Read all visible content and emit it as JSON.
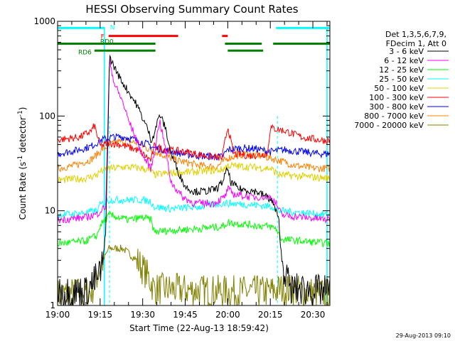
{
  "chart_data": {
    "type": "line",
    "title": "HESSI Observing Summary Count Rates",
    "xlabel": "Start Time (22-Aug-13 18:59:42)",
    "ylabel": "Count Rate (s",
    "ylabel_sup1": "-1",
    "ylabel_mid": " detector",
    "ylabel_sup2": "-1",
    "ylabel_end": ")",
    "y_scale": "log",
    "xlim_minutes": [
      0,
      96
    ],
    "ylim": [
      1,
      1000
    ],
    "x_ticks": [
      {
        "label": "19:00",
        "min": 0
      },
      {
        "label": "19:15",
        "min": 15
      },
      {
        "label": "19:30",
        "min": 30
      },
      {
        "label": "19:45",
        "min": 45
      },
      {
        "label": "20:00",
        "min": 60
      },
      {
        "label": "20:15",
        "min": 75
      },
      {
        "label": "20:30",
        "min": 90
      }
    ],
    "y_ticks": [
      {
        "label": "1",
        "value": 1
      },
      {
        "label": "10",
        "value": 10
      },
      {
        "label": "100",
        "value": 100
      },
      {
        "label": "1000",
        "value": 1000
      }
    ],
    "legend_header": [
      "Det 1,3,5,6,7,9,",
      "FDecim 1, Att 0"
    ],
    "series": [
      {
        "name": "3 - 6 keV",
        "color": "#000000",
        "points": [
          [
            0,
            1.4
          ],
          [
            10,
            1.4
          ],
          [
            15,
            2.2
          ],
          [
            16,
            3
          ],
          [
            17,
            6
          ],
          [
            18.3,
            420
          ],
          [
            20,
            330
          ],
          [
            22,
            250
          ],
          [
            25,
            180
          ],
          [
            28,
            130
          ],
          [
            30,
            95
          ],
          [
            32,
            70
          ],
          [
            33,
            55
          ],
          [
            34,
            65
          ],
          [
            36,
            105
          ],
          [
            38,
            75
          ],
          [
            40,
            40
          ],
          [
            43,
            24
          ],
          [
            45,
            18
          ],
          [
            48,
            16
          ],
          [
            52,
            16
          ],
          [
            56,
            17
          ],
          [
            58,
            20
          ],
          [
            60,
            28
          ],
          [
            61,
            20
          ],
          [
            64,
            17
          ],
          [
            70,
            16
          ],
          [
            74,
            14
          ],
          [
            76,
            12
          ],
          [
            78,
            8
          ],
          [
            79,
            3
          ],
          [
            82,
            1.5
          ],
          [
            96,
            1.4
          ]
        ]
      },
      {
        "name": "6 - 12 keV",
        "color": "#ff00ff",
        "points": [
          [
            0,
            8
          ],
          [
            10,
            8.5
          ],
          [
            14,
            9.2
          ],
          [
            15,
            10
          ],
          [
            17,
            11
          ],
          [
            18.3,
            400
          ],
          [
            20,
            220
          ],
          [
            23,
            140
          ],
          [
            25,
            90
          ],
          [
            28,
            55
          ],
          [
            30,
            38
          ],
          [
            33,
            28
          ],
          [
            34,
            40
          ],
          [
            36,
            90
          ],
          [
            38,
            45
          ],
          [
            40,
            20
          ],
          [
            44,
            14
          ],
          [
            48,
            12
          ],
          [
            55,
            12
          ],
          [
            59,
            14
          ],
          [
            60,
            17
          ],
          [
            62,
            15
          ],
          [
            68,
            14
          ],
          [
            75,
            14
          ],
          [
            77,
            12
          ],
          [
            79,
            9
          ],
          [
            96,
            8
          ]
        ]
      },
      {
        "name": "12 - 25 keV",
        "color": "#00ff00",
        "points": [
          [
            0,
            4.5
          ],
          [
            10,
            4.8
          ],
          [
            14,
            5.5
          ],
          [
            15,
            7
          ],
          [
            18.3,
            9
          ],
          [
            25,
            8
          ],
          [
            30,
            8.5
          ],
          [
            33,
            8
          ],
          [
            34,
            6
          ],
          [
            40,
            6.2
          ],
          [
            50,
            6.5
          ],
          [
            58,
            6.8
          ],
          [
            60,
            7.5
          ],
          [
            70,
            7
          ],
          [
            75,
            6.8
          ],
          [
            77,
            6.5
          ],
          [
            79,
            5
          ],
          [
            96,
            4.5
          ]
        ]
      },
      {
        "name": "25 - 50 keV",
        "color": "#00ffff",
        "points": [
          [
            0,
            9
          ],
          [
            10,
            9.5
          ],
          [
            14,
            10
          ],
          [
            15,
            11.5
          ],
          [
            18.3,
            13
          ],
          [
            25,
            13
          ],
          [
            30,
            13
          ],
          [
            33,
            12.5
          ],
          [
            34,
            11
          ],
          [
            40,
            10.5
          ],
          [
            50,
            11
          ],
          [
            58,
            12
          ],
          [
            60,
            12
          ],
          [
            70,
            11.5
          ],
          [
            76,
            11
          ],
          [
            78,
            10
          ],
          [
            96,
            9
          ]
        ]
      },
      {
        "name": "50 - 100 keV",
        "color": "#e0d000",
        "points": [
          [
            0,
            21
          ],
          [
            10,
            22
          ],
          [
            14,
            24
          ],
          [
            15,
            26
          ],
          [
            18.3,
            28
          ],
          [
            24,
            29
          ],
          [
            30,
            28
          ],
          [
            33,
            26
          ],
          [
            34,
            24
          ],
          [
            40,
            25
          ],
          [
            50,
            26
          ],
          [
            58,
            27
          ],
          [
            60,
            30
          ],
          [
            68,
            29
          ],
          [
            75,
            28
          ],
          [
            78,
            24
          ],
          [
            96,
            22
          ]
        ]
      },
      {
        "name": "100 - 300 keV",
        "color": "#ff0000",
        "points": [
          [
            0,
            56
          ],
          [
            8,
            60
          ],
          [
            12,
            70
          ],
          [
            13,
            80
          ],
          [
            15,
            48
          ],
          [
            18.3,
            52
          ],
          [
            22,
            50
          ],
          [
            28,
            44
          ],
          [
            33,
            34
          ],
          [
            34,
            48
          ],
          [
            38,
            44
          ],
          [
            45,
            42
          ],
          [
            52,
            38
          ],
          [
            58,
            36
          ],
          [
            60,
            78
          ],
          [
            62,
            40
          ],
          [
            68,
            38
          ],
          [
            74,
            40
          ],
          [
            75,
            75
          ],
          [
            80,
            70
          ],
          [
            86,
            60
          ],
          [
            92,
            56
          ],
          [
            96,
            55
          ]
        ]
      },
      {
        "name": "300 - 800 keV",
        "color": "#0000ff",
        "points": [
          [
            0,
            40
          ],
          [
            6,
            43
          ],
          [
            12,
            48
          ],
          [
            15,
            55
          ],
          [
            19,
            60
          ],
          [
            24,
            60
          ],
          [
            28,
            55
          ],
          [
            32,
            50
          ],
          [
            34,
            46
          ],
          [
            38,
            44
          ],
          [
            44,
            40
          ],
          [
            50,
            38
          ],
          [
            58,
            37
          ],
          [
            60,
            44
          ],
          [
            65,
            46
          ],
          [
            70,
            45
          ],
          [
            75,
            42
          ],
          [
            80,
            44
          ],
          [
            86,
            42
          ],
          [
            92,
            40
          ],
          [
            96,
            40
          ]
        ]
      },
      {
        "name": "800 - 7000 keV",
        "color": "#ff8000",
        "points": [
          [
            0,
            28
          ],
          [
            6,
            30
          ],
          [
            12,
            35
          ],
          [
            16,
            45
          ],
          [
            20,
            52
          ],
          [
            24,
            55
          ],
          [
            28,
            52
          ],
          [
            32,
            45
          ],
          [
            36,
            40
          ],
          [
            42,
            34
          ],
          [
            50,
            30
          ],
          [
            56,
            29
          ],
          [
            60,
            36
          ],
          [
            66,
            40
          ],
          [
            72,
            38
          ],
          [
            78,
            34
          ],
          [
            84,
            30
          ],
          [
            90,
            28
          ],
          [
            96,
            28
          ]
        ]
      },
      {
        "name": "7000 - 20000 keV",
        "color": "#808000",
        "points": [
          [
            0,
            1.3
          ],
          [
            12,
            1.4
          ],
          [
            15,
            2.5
          ],
          [
            18,
            4
          ],
          [
            23,
            4
          ],
          [
            28,
            3
          ],
          [
            32,
            2
          ],
          [
            34,
            1.5
          ],
          [
            60,
            1.4
          ],
          [
            75,
            1.4
          ],
          [
            79,
            1.5
          ],
          [
            96,
            1.3
          ]
        ]
      }
    ],
    "flags": [
      {
        "label": "N",
        "color": "#00ffff",
        "level": 850,
        "segments": [
          [
            0,
            16.5
          ],
          [
            77,
            96
          ]
        ]
      },
      {
        "label": "F",
        "color": "#ff0000",
        "level": 700,
        "segments": [
          [
            18,
            42.5
          ],
          [
            58,
            60
          ]
        ]
      },
      {
        "label": "RD0",
        "color": "#008000",
        "level": 580,
        "segments": [
          [
            0,
            34.5
          ],
          [
            59,
            72
          ],
          [
            76,
            96
          ]
        ]
      },
      {
        "label": "RD6",
        "color": "#008000",
        "level": 490,
        "segments": [
          [
            13,
            34.5
          ],
          [
            60,
            72.5
          ]
        ]
      }
    ],
    "saa_lines_minutes": [
      18.3,
      77.5
    ],
    "night_lines_minutes": [
      16.5,
      95
    ]
  },
  "footer_date": "29-Aug-2013 09:10"
}
